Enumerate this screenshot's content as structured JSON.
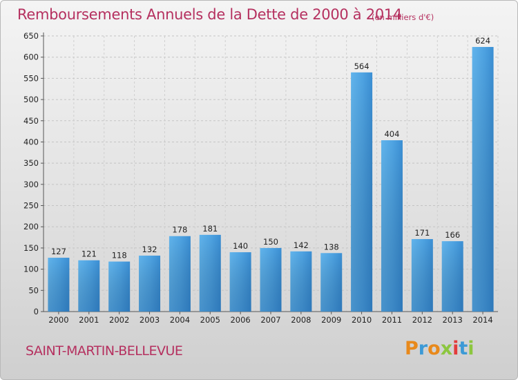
{
  "header": {
    "title": "Remboursements Annuels de la Dette de 2000 à 2014",
    "unit": "(en milliers d'€)"
  },
  "footer": {
    "commune": "SAINT-MARTIN-BELLEVUE",
    "logo": "Proxiti"
  },
  "colors": {
    "title": "#b5305f",
    "bar_light": "#5aaee8",
    "bar_dark": "#2b7ec3"
  },
  "chart_data": {
    "type": "bar",
    "title": "Remboursements Annuels de la Dette de 2000 à 2014",
    "subtitle": "(en milliers d'€)",
    "categories": [
      "2000",
      "2001",
      "2002",
      "2003",
      "2004",
      "2005",
      "2006",
      "2007",
      "2008",
      "2009",
      "2010",
      "2011",
      "2012",
      "2013",
      "2014"
    ],
    "values": [
      127,
      121,
      118,
      132,
      178,
      181,
      140,
      150,
      142,
      138,
      564,
      404,
      171,
      166,
      624
    ],
    "ylim": [
      0,
      650
    ],
    "yticks": [
      0,
      50,
      100,
      150,
      200,
      250,
      300,
      350,
      400,
      450,
      500,
      550,
      600,
      650
    ],
    "grid": true
  }
}
